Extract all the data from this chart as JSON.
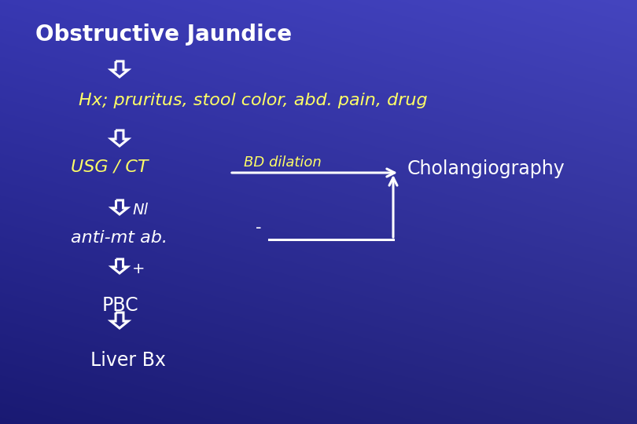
{
  "title": "Obstructive Jaundice",
  "title_color": "#FFFFFF",
  "title_fontsize": 20,
  "hx_text": "Hx; pruritus, stool color, abd. pain, drug",
  "hx_color": "#FFFF66",
  "hx_fontsize": 16,
  "usg_text": "USG / CT",
  "usg_color": "#FFFF66",
  "usg_fontsize": 16,
  "bd_text": "BD dilation",
  "bd_color": "#FFFF66",
  "bd_fontsize": 13,
  "cholangio_text": "Cholangiography",
  "cholangio_color": "#FFFFFF",
  "cholangio_fontsize": 17,
  "nl_text": "Nl",
  "nl_color": "#FFFFFF",
  "nl_fontsize": 14,
  "antimt_text": "anti-mt ab.",
  "antimt_color": "#FFFFFF",
  "antimt_fontsize": 16,
  "minus_text": "-",
  "minus_color": "#FFFFFF",
  "minus_fontsize": 15,
  "plus_text": "+",
  "plus_color": "#FFFFFF",
  "plus_fontsize": 14,
  "pbc_text": "PBC",
  "pbc_color": "#FFFFFF",
  "pbc_fontsize": 17,
  "liverbx_text": "Liver Bx",
  "liverbx_color": "#FFFFFF",
  "liverbx_fontsize": 17,
  "arrow_color": "#FFFFFF",
  "bg_color_topleft": "#1a1a7a",
  "bg_color_bottomright": "#2a2ab8"
}
